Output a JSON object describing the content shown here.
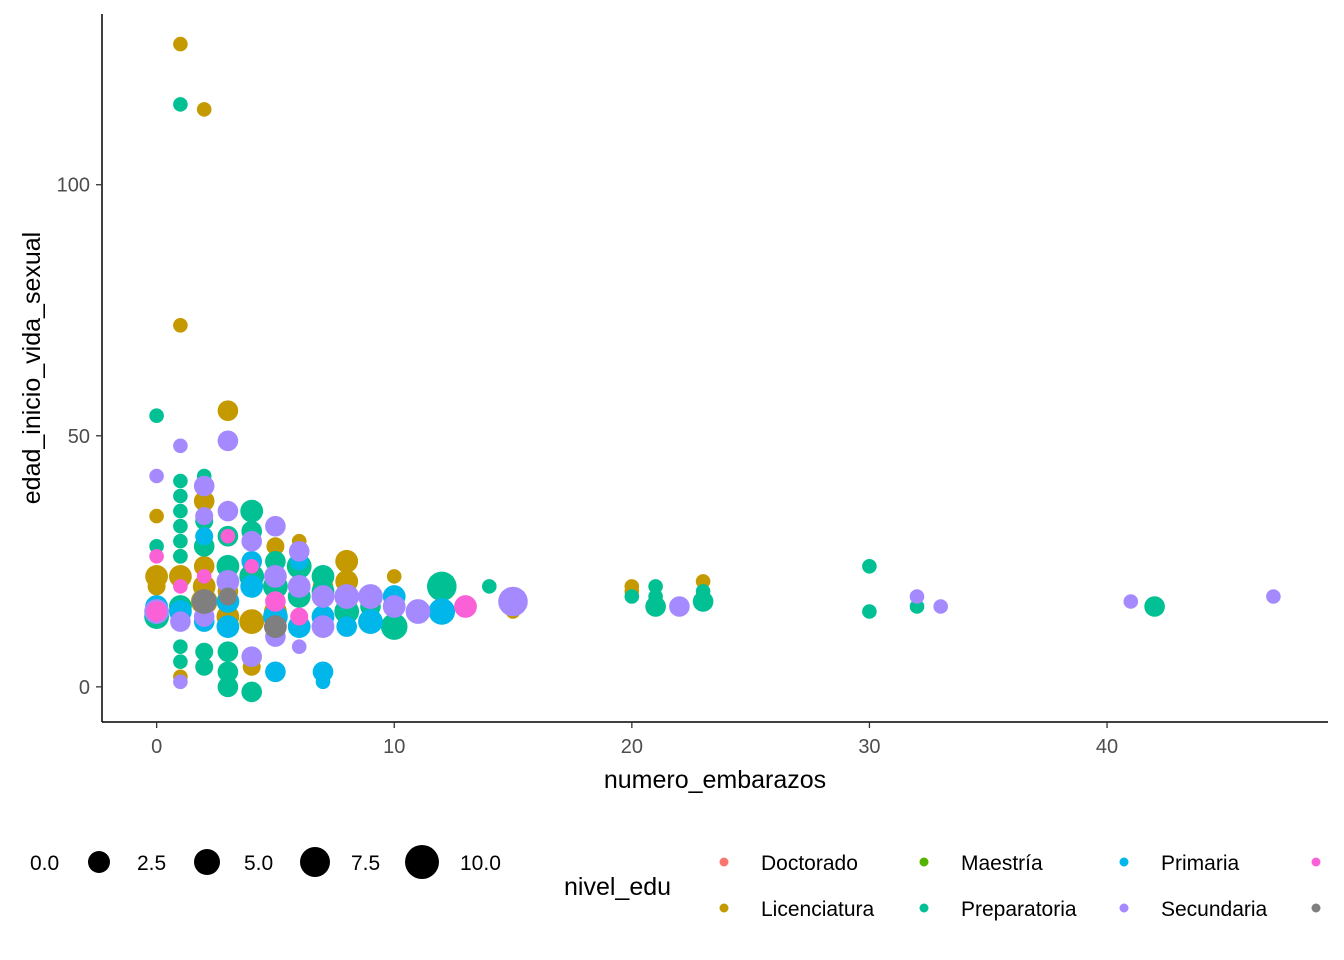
{
  "chart_data": {
    "type": "scatter",
    "title": "",
    "xlabel": "numero_embarazos",
    "ylabel": "edad_inicio_vida_sexual",
    "xlim": [
      -2.3,
      49.3
    ],
    "ylim": [
      -7,
      134
    ],
    "x_ticks": [
      "0",
      "10",
      "20",
      "30",
      "40"
    ],
    "y_ticks": [
      "0",
      "50",
      "100"
    ],
    "grid": false,
    "size_legend": {
      "title": "",
      "values": [
        0.0,
        2.5,
        5.0,
        7.5,
        10.0
      ],
      "labels": [
        "0.0",
        "2.5",
        "5.0",
        "7.5",
        "10.0"
      ]
    },
    "color_legend": {
      "title": "nivel_edu",
      "position": "bottom",
      "entries": [
        {
          "label": "Doctorado",
          "color": "#F8766D"
        },
        {
          "label": "Licenciatura",
          "color": "#C49A00"
        },
        {
          "label": "Maestría",
          "color": "#53B400"
        },
        {
          "label": "Preparatoria",
          "color": "#00C094"
        },
        {
          "label": "Primaria",
          "color": "#00B6EB"
        },
        {
          "label": "Secundaria",
          "color": "#A58AFF"
        },
        {
          "label": "",
          "color": "#FB61D7"
        },
        {
          "label": "",
          "color": "#7F7F7F"
        }
      ]
    },
    "series": [
      {
        "name": "Licenciatura",
        "color": "#C49A00",
        "points": [
          [
            1,
            128,
            1
          ],
          [
            2,
            115,
            1
          ],
          [
            1,
            72,
            1
          ],
          [
            3,
            55,
            3
          ],
          [
            0,
            34,
            1
          ],
          [
            2,
            37,
            3
          ],
          [
            1,
            26,
            1
          ],
          [
            0,
            22,
            4
          ],
          [
            1,
            22,
            4
          ],
          [
            2,
            24,
            3
          ],
          [
            2,
            20,
            4
          ],
          [
            3,
            19,
            3
          ],
          [
            4,
            13,
            5
          ],
          [
            4,
            4,
            2
          ],
          [
            5,
            15,
            4
          ],
          [
            5,
            28,
            2
          ],
          [
            6,
            29,
            1
          ],
          [
            7,
            20,
            3
          ],
          [
            8,
            25,
            4
          ],
          [
            8,
            21,
            4
          ],
          [
            10,
            22,
            1
          ],
          [
            15,
            15,
            1
          ],
          [
            20,
            20,
            1
          ],
          [
            20,
            19,
            1
          ],
          [
            23,
            21,
            1
          ],
          [
            1,
            2,
            1
          ],
          [
            2,
            17,
            6
          ],
          [
            3,
            14,
            4
          ],
          [
            6,
            18,
            3
          ],
          [
            0,
            20,
            2
          ]
        ]
      },
      {
        "name": "Preparatoria",
        "color": "#00C094",
        "points": [
          [
            1,
            116,
            1
          ],
          [
            0,
            54,
            1
          ],
          [
            0,
            28,
            1
          ],
          [
            1,
            41,
            1
          ],
          [
            1,
            38,
            1
          ],
          [
            1,
            35,
            1
          ],
          [
            1,
            32,
            1
          ],
          [
            1,
            29,
            1
          ],
          [
            1,
            26,
            1
          ],
          [
            1,
            8,
            1
          ],
          [
            1,
            5,
            1
          ],
          [
            2,
            42,
            1
          ],
          [
            2,
            33,
            2
          ],
          [
            2,
            28,
            3
          ],
          [
            2,
            7,
            2
          ],
          [
            2,
            4,
            2
          ],
          [
            3,
            30,
            3
          ],
          [
            3,
            7,
            3
          ],
          [
            3,
            3,
            3
          ],
          [
            3,
            0,
            3
          ],
          [
            4,
            35,
            4
          ],
          [
            4,
            31,
            3
          ],
          [
            4,
            22,
            5
          ],
          [
            4,
            -1,
            3
          ],
          [
            5,
            25,
            3
          ],
          [
            5,
            20,
            5
          ],
          [
            6,
            24,
            5
          ],
          [
            6,
            18,
            4
          ],
          [
            7,
            22,
            4
          ],
          [
            7,
            19,
            4
          ],
          [
            8,
            15,
            5
          ],
          [
            9,
            16,
            3
          ],
          [
            10,
            12,
            6
          ],
          [
            12,
            20,
            8
          ],
          [
            14,
            20,
            1
          ],
          [
            20,
            18,
            1
          ],
          [
            21,
            20,
            1
          ],
          [
            21,
            18,
            1
          ],
          [
            21,
            16,
            3
          ],
          [
            23,
            19,
            1
          ],
          [
            23,
            17,
            3
          ],
          [
            30,
            24,
            1
          ],
          [
            30,
            15,
            1
          ],
          [
            32,
            16,
            1
          ],
          [
            42,
            16,
            3
          ],
          [
            0,
            14,
            5
          ],
          [
            1,
            16,
            4
          ],
          [
            3,
            24,
            4
          ]
        ]
      },
      {
        "name": "Primaria",
        "color": "#00B6EB",
        "points": [
          [
            0,
            16,
            4
          ],
          [
            1,
            15,
            4
          ],
          [
            2,
            13,
            3
          ],
          [
            3,
            12,
            4
          ],
          [
            4,
            20,
            4
          ],
          [
            5,
            3,
            3
          ],
          [
            5,
            14,
            5
          ],
          [
            6,
            12,
            4
          ],
          [
            7,
            3,
            3
          ],
          [
            7,
            1,
            1
          ],
          [
            7,
            14,
            4
          ],
          [
            8,
            12,
            3
          ],
          [
            9,
            13,
            5
          ],
          [
            10,
            18,
            4
          ],
          [
            12,
            15,
            6
          ],
          [
            6,
            25,
            2
          ],
          [
            4,
            25,
            3
          ],
          [
            2,
            30,
            2
          ],
          [
            3,
            17,
            4
          ]
        ]
      },
      {
        "name": "Secundaria",
        "color": "#A58AFF",
        "points": [
          [
            0,
            42,
            1
          ],
          [
            1,
            48,
            1
          ],
          [
            0,
            15,
            5
          ],
          [
            1,
            13,
            3
          ],
          [
            2,
            40,
            3
          ],
          [
            2,
            34,
            2
          ],
          [
            3,
            49,
            3
          ],
          [
            3,
            35,
            3
          ],
          [
            3,
            21,
            4
          ],
          [
            4,
            29,
            3
          ],
          [
            4,
            6,
            3
          ],
          [
            5,
            32,
            3
          ],
          [
            5,
            22,
            4
          ],
          [
            6,
            27,
            3
          ],
          [
            6,
            8,
            1
          ],
          [
            7,
            18,
            4
          ],
          [
            7,
            12,
            4
          ],
          [
            8,
            18,
            5
          ],
          [
            9,
            18,
            5
          ],
          [
            10,
            16,
            4
          ],
          [
            11,
            15,
            5
          ],
          [
            15,
            17,
            8
          ],
          [
            22,
            16,
            3
          ],
          [
            32,
            18,
            1
          ],
          [
            33,
            16,
            1
          ],
          [
            41,
            17,
            1
          ],
          [
            47,
            18,
            1
          ],
          [
            1,
            1,
            1
          ],
          [
            6,
            20,
            4
          ],
          [
            5,
            10,
            3
          ],
          [
            2,
            14,
            3
          ]
        ]
      },
      {
        "name": "",
        "color": "#FB61D7",
        "points": [
          [
            0,
            26,
            1
          ],
          [
            0,
            15,
            3
          ],
          [
            1,
            20,
            1
          ],
          [
            3,
            30,
            1
          ],
          [
            4,
            24,
            1
          ],
          [
            5,
            17,
            3
          ],
          [
            13,
            16,
            4
          ],
          [
            2,
            22,
            1
          ],
          [
            6,
            14,
            2
          ]
        ]
      },
      {
        "name": "",
        "color": "#7F7F7F",
        "points": [
          [
            2,
            17,
            5
          ],
          [
            5,
            12,
            4
          ],
          [
            3,
            18,
            2
          ]
        ]
      }
    ]
  }
}
